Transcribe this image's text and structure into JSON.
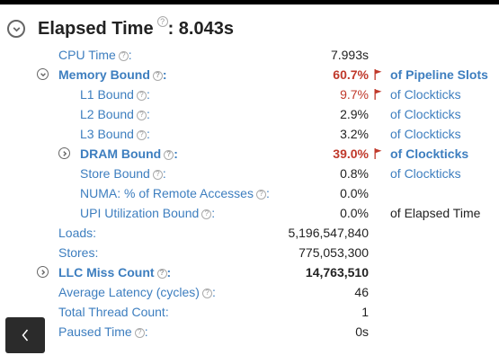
{
  "header": {
    "title": "Elapsed Time",
    "colon_value": ": 8.043s"
  },
  "rows": [
    {
      "label": "CPU Time",
      "value": "7.993s",
      "unit": ""
    },
    {
      "label": "Memory Bound",
      "value": "60.7%",
      "unit": "of Pipeline Slots"
    },
    {
      "label": "L1 Bound",
      "value": "9.7%",
      "unit": "of Clockticks"
    },
    {
      "label": "L2 Bound",
      "value": "2.9%",
      "unit": "of Clockticks"
    },
    {
      "label": "L3 Bound",
      "value": "3.2%",
      "unit": "of Clockticks"
    },
    {
      "label": "DRAM Bound",
      "value": "39.0%",
      "unit": "of Clockticks"
    },
    {
      "label": "Store Bound",
      "value": "0.8%",
      "unit": "of Clockticks"
    },
    {
      "label": "NUMA: % of Remote Accesses",
      "value": "0.0%",
      "unit": ""
    },
    {
      "label": "UPI Utilization Bound",
      "value": "0.0%",
      "unit": "of Elapsed Time"
    },
    {
      "label": "Loads:",
      "value": "5,196,547,840",
      "unit": ""
    },
    {
      "label": "Stores:",
      "value": "775,053,300",
      "unit": ""
    },
    {
      "label": "LLC Miss Count",
      "value": "14,763,510",
      "unit": ""
    },
    {
      "label": "Average Latency (cycles)",
      "value": "46",
      "unit": ""
    },
    {
      "label": "Total Thread Count:",
      "value": "1",
      "unit": ""
    },
    {
      "label": "Paused Time",
      "value": "0s",
      "unit": ""
    }
  ],
  "help_glyph": "?",
  "icons": {
    "expand": "chevron-down-icon",
    "collapsed": "chevron-right-icon",
    "flag": "flag-icon",
    "help": "help-icon",
    "back": "chevron-left-icon"
  },
  "colors": {
    "link": "#3d7ebf",
    "alert": "#c0392b",
    "text": "#222222"
  }
}
